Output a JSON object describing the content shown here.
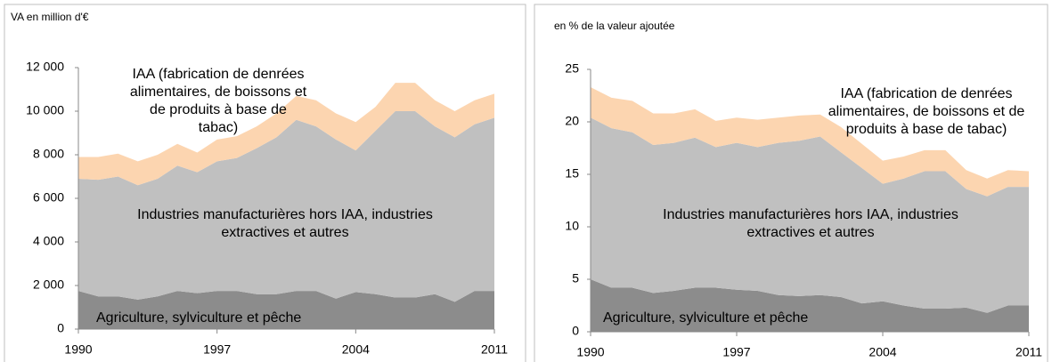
{
  "chart_data": [
    {
      "type": "area",
      "ylabel": "VA en million d'€",
      "x": [
        1990,
        1991,
        1992,
        1993,
        1994,
        1995,
        1996,
        1997,
        1998,
        1999,
        2000,
        2001,
        2002,
        2003,
        2004,
        2005,
        2006,
        2007,
        2008,
        2009,
        2010,
        2011
      ],
      "xlim": [
        1990,
        2011
      ],
      "xticks": [
        1990,
        1997,
        2004,
        2011
      ],
      "ylim": [
        0,
        12000
      ],
      "yticks": [
        0,
        {
          "value": 2000,
          "label": "2 000"
        },
        {
          "value": 4000,
          "label": "4 000"
        },
        {
          "value": 6000,
          "label": "6 000"
        },
        {
          "value": 8000,
          "label": "8 000"
        },
        {
          "value": 10000,
          "label": "10 000"
        },
        {
          "value": 12000,
          "label": "12 000"
        }
      ],
      "stacked": true,
      "series": [
        {
          "name": "Agriculture, sylviculture et pêche",
          "color": "#8c8c8c",
          "values": [
            1750,
            1500,
            1500,
            1350,
            1500,
            1750,
            1650,
            1750,
            1750,
            1600,
            1600,
            1750,
            1750,
            1400,
            1700,
            1600,
            1450,
            1450,
            1600,
            1250,
            1750,
            1750
          ]
        },
        {
          "name": "Industries manufacturières hors IAA, industries extractives et autres",
          "color": "#c0c0c0",
          "values": [
            5150,
            5350,
            5500,
            5250,
            5400,
            5750,
            5550,
            5950,
            6100,
            6700,
            7200,
            7850,
            7550,
            7300,
            6500,
            7500,
            8550,
            8550,
            7700,
            7550,
            7650,
            7950
          ]
        },
        {
          "name": "IAA (fabrication de denrées alimentaires, de boissons et de produits à base de tabac)",
          "color": "#fcd5b0",
          "values": [
            1000,
            1050,
            1050,
            1100,
            1100,
            1000,
            900,
            1000,
            1000,
            1000,
            1100,
            1100,
            1200,
            1200,
            1300,
            1100,
            1300,
            1300,
            1200,
            1200,
            1100,
            1100
          ]
        }
      ]
    },
    {
      "type": "area",
      "ylabel": "en % de la valeur ajoutée",
      "x": [
        1990,
        1991,
        1992,
        1993,
        1994,
        1995,
        1996,
        1997,
        1998,
        1999,
        2000,
        2001,
        2002,
        2003,
        2004,
        2005,
        2006,
        2007,
        2008,
        2009,
        2010,
        2011
      ],
      "xlim": [
        1990,
        2011
      ],
      "xticks": [
        1990,
        1997,
        2004,
        2011
      ],
      "ylim": [
        0,
        25
      ],
      "yticks": [
        0,
        5,
        10,
        15,
        20,
        25
      ],
      "stacked": true,
      "series": [
        {
          "name": "Agriculture, sylviculture et pêche",
          "color": "#8c8c8c",
          "values": [
            5.0,
            4.2,
            4.2,
            3.7,
            3.9,
            4.2,
            4.2,
            4.0,
            3.9,
            3.5,
            3.4,
            3.5,
            3.3,
            2.7,
            2.9,
            2.5,
            2.2,
            2.2,
            2.3,
            1.8,
            2.5,
            2.5
          ]
        },
        {
          "name": "Industries manufacturières hors IAA, industries extractives et autres",
          "color": "#c0c0c0",
          "values": [
            15.4,
            15.2,
            14.8,
            14.1,
            14.1,
            14.3,
            13.4,
            14.0,
            13.7,
            14.5,
            14.8,
            15.1,
            13.8,
            12.9,
            11.2,
            12.1,
            13.1,
            13.1,
            11.3,
            11.1,
            11.3,
            11.3
          ]
        },
        {
          "name": "IAA (fabrication de denrées alimentaires, de boissons et de produits à base de tabac)",
          "color": "#fcd5b0",
          "values": [
            2.9,
            2.9,
            3.0,
            3.0,
            2.8,
            2.7,
            2.5,
            2.4,
            2.6,
            2.4,
            2.4,
            2.1,
            2.4,
            2.3,
            2.2,
            2.1,
            2.0,
            2.0,
            1.8,
            1.7,
            1.6,
            1.5
          ]
        }
      ]
    }
  ]
}
